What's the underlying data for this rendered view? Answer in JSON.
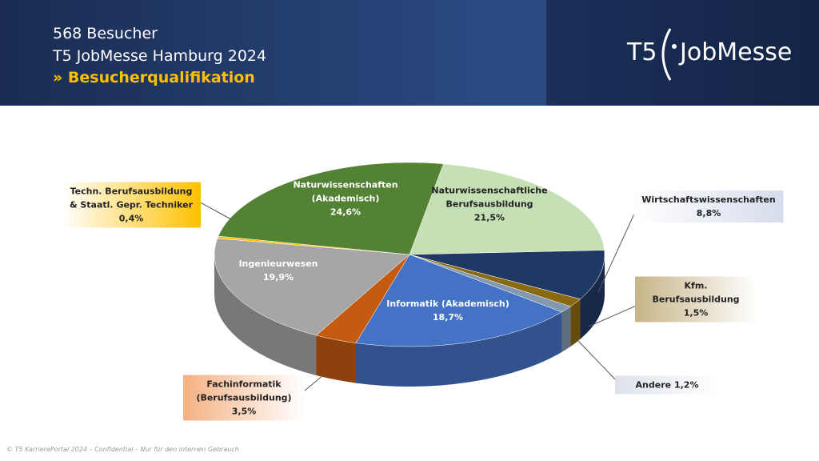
{
  "header": {
    "line1": "568 Besucher",
    "line2": "T5 JobMesse Hamburg 2024",
    "subtitle": "» Besucherqualifikation",
    "logo_left": "T5",
    "logo_right": "JobMesse"
  },
  "chart_data": {
    "type": "pie",
    "categories": [
      "Naturwissenschaftliche Berufsausbildung",
      "Wirtschaftswissenschaften",
      "Kfm. Berufsausbildung",
      "Andere",
      "Informatik (Akademisch)",
      "Fachinformatik (Berufsausbildung)",
      "Ingenieurwesen",
      "Techn. Berufsausbildung & Staatl. Gepr. Techniker",
      "Naturwissenschaften (Akademisch)"
    ],
    "values": [
      21.5,
      8.8,
      1.5,
      1.2,
      18.7,
      3.5,
      19.9,
      0.4,
      24.6
    ],
    "value_labels": [
      "21,5%",
      "8,8%",
      "1,5%",
      "1,2%",
      "18,7%",
      "3,5%",
      "19,9%",
      "0,4%",
      "24,6%"
    ],
    "colors": [
      "#c5e0b4",
      "#203864",
      "#8a6a10",
      "#8497b0",
      "#4472c4",
      "#c55a11",
      "#a6a6a6",
      "#ffc000",
      "#548235"
    ]
  },
  "footer": "© T5 KarrierePortal 2024 – Confidential – Nur für den internen Gebrauch"
}
